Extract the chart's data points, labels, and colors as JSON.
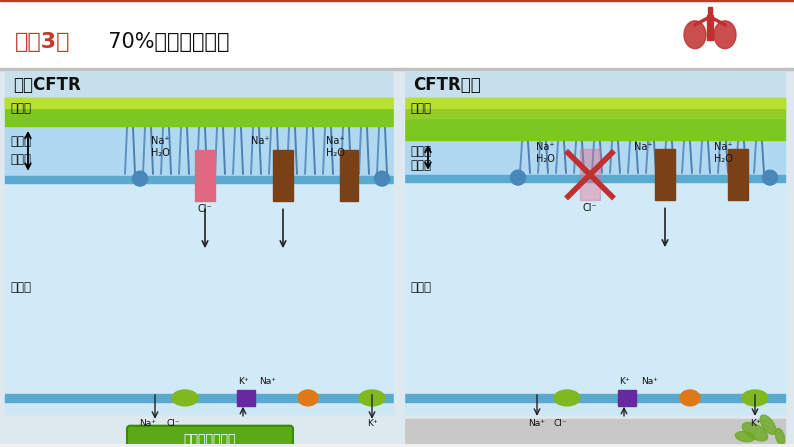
{
  "bg_color": "#f0f0f0",
  "title_red": "实兣3：",
  "title_black": "  70%的囊性维维化",
  "left_label": "正常CFTR",
  "right_label": "CFTR突变",
  "layer1": "黑液层",
  "layer2": "液体层",
  "layer3": "游离面",
  "layer4": "基底面",
  "bottom_text": "系组，肺部感染",
  "top_line_color": "#c0392b",
  "title_area_bg": "#ffffff",
  "content_bg": "#dde8ef",
  "panel_bg": "#cde8f5",
  "mucus_dark": "#7dc820",
  "mucus_light": "#b8e030",
  "liquid_color": "#b0d8f0",
  "membrane_color": "#5aaad0",
  "cell_body_color": "#d0eaf8",
  "header_bg": "#c8e0ec",
  "pink_channel": "#e06880",
  "brown_channel": "#7a4018",
  "blue_circle": "#4888b8",
  "green_ellipse": "#80b820",
  "purple_rect": "#6828a0",
  "orange_ellipse": "#e07818",
  "red_x_color": "#c03030",
  "green_bar": "#5aaa18",
  "arrow_color": "#222222",
  "label_color": "#111111",
  "gray_bottom": "#c8c8c8"
}
